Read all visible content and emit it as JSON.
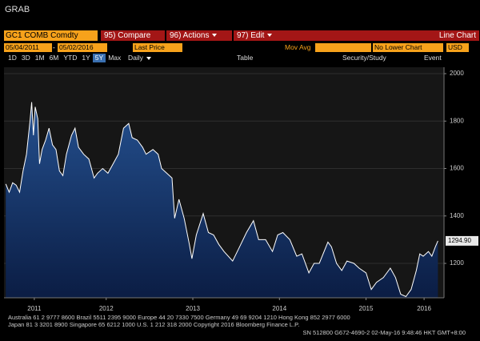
{
  "window": {
    "title": "GRAB"
  },
  "toolbar": {
    "ticker": "GC1 COMB Comdty",
    "buttons": [
      "95) Compare",
      "96) Actions",
      "97) Edit"
    ],
    "chart_type": "Line Chart"
  },
  "controls": {
    "start_date": "05/04/2011",
    "date_separator": "-",
    "end_date": "05/02/2016",
    "field": "Last Price",
    "study": "Mov Avg",
    "lower_chart": "No Lower Chart",
    "currency": "USD"
  },
  "periods": [
    "1D",
    "3D",
    "1M",
    "6M",
    "YTD",
    "1Y",
    "5Y",
    "Max"
  ],
  "selected_period": "5Y",
  "frequency": "Daily",
  "table": "Table",
  "security_study": "Security/Study",
  "event": "Event",
  "footer": [
    "Australia 61 2 9777 8600 Brazil 5511 2395 9000 Europe 44 20 7330 7500 Germany 49 69 9204 1210 Hong Kong 852 2977 6000",
    "Japan 81 3 3201 8900        Singapore 65 6212 1000        U.S. 1 212 318 2000        Copyright 2016 Bloomberg Finance L.P.",
    "SN 512800 G672-4690-2 02-May-16  9:48:46 HKT  GMT+8:00"
  ],
  "chart_data": {
    "type": "line",
    "color": "#ffffff",
    "fill": "#1d3f78",
    "x": [
      2011.34,
      2011.38,
      2011.42,
      2011.46,
      2011.5,
      2011.54,
      2011.58,
      2011.62,
      2011.64,
      2011.66,
      2011.68,
      2011.71,
      2011.73,
      2011.76,
      2011.8,
      2011.84,
      2011.88,
      2011.92,
      2011.96,
      2012.0,
      2012.04,
      2012.1,
      2012.14,
      2012.18,
      2012.24,
      2012.3,
      2012.36,
      2012.4,
      2012.46,
      2012.52,
      2012.58,
      2012.64,
      2012.7,
      2012.76,
      2012.8,
      2012.86,
      2012.92,
      2012.96,
      2013.04,
      2013.1,
      2013.14,
      2013.2,
      2013.26,
      2013.29,
      2013.34,
      2013.4,
      2013.46,
      2013.49,
      2013.54,
      2013.62,
      2013.68,
      2013.74,
      2013.8,
      2013.86,
      2013.96,
      2014.04,
      2014.12,
      2014.2,
      2014.26,
      2014.34,
      2014.42,
      2014.48,
      2014.54,
      2014.62,
      2014.7,
      2014.76,
      2014.84,
      2014.9,
      2014.96,
      2015.06,
      2015.1,
      2015.16,
      2015.22,
      2015.28,
      2015.36,
      2015.42,
      2015.5,
      2015.56,
      2015.62,
      2015.7,
      2015.78,
      2015.84,
      2015.9,
      2015.96,
      2016.02,
      2016.08,
      2016.12,
      2016.16,
      2016.22,
      2016.26,
      2016.3,
      2016.33
    ],
    "values": [
      1535,
      1500,
      1540,
      1530,
      1500,
      1590,
      1660,
      1800,
      1880,
      1740,
      1860,
      1810,
      1620,
      1680,
      1720,
      1770,
      1700,
      1680,
      1590,
      1570,
      1660,
      1740,
      1770,
      1690,
      1660,
      1640,
      1560,
      1580,
      1600,
      1580,
      1620,
      1660,
      1770,
      1790,
      1730,
      1720,
      1690,
      1660,
      1680,
      1660,
      1600,
      1580,
      1560,
      1390,
      1470,
      1390,
      1280,
      1220,
      1320,
      1410,
      1330,
      1320,
      1280,
      1250,
      1210,
      1270,
      1330,
      1380,
      1300,
      1300,
      1250,
      1320,
      1330,
      1300,
      1230,
      1240,
      1160,
      1200,
      1200,
      1290,
      1270,
      1200,
      1170,
      1210,
      1200,
      1180,
      1160,
      1090,
      1120,
      1140,
      1180,
      1140,
      1070,
      1060,
      1090,
      1170,
      1240,
      1230,
      1250,
      1230,
      1270,
      1294.9
    ],
    "last_value_label": "1294.90",
    "xlim": [
      2011.32,
      2016.4
    ],
    "ylim": [
      1055,
      2027
    ],
    "yticks": [
      1200,
      1400,
      1600,
      1800,
      2000
    ],
    "xticks": [
      {
        "value": 2011.67,
        "label": "2011"
      },
      {
        "value": 2012.5,
        "label": "2012"
      },
      {
        "value": 2013.5,
        "label": "2013"
      },
      {
        "value": 2014.5,
        "label": "2014"
      },
      {
        "value": 2015.5,
        "label": "2015"
      },
      {
        "value": 2016.17,
        "label": "2016"
      }
    ],
    "grid": true
  }
}
